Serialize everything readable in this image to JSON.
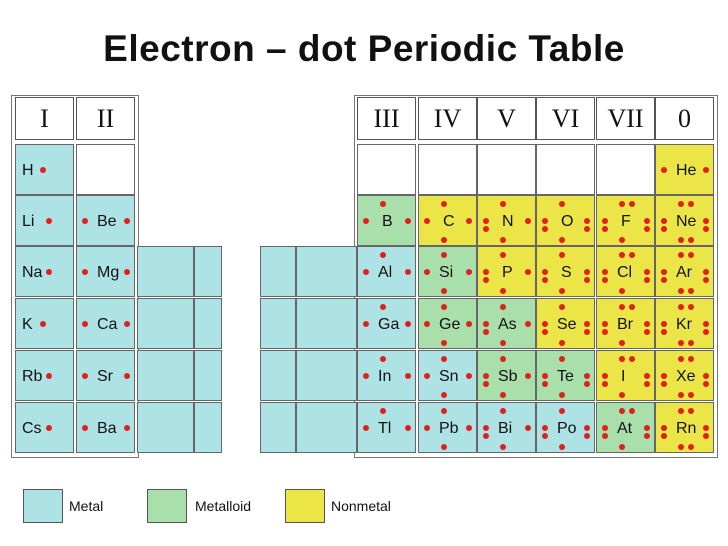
{
  "title": "Electron – dot Periodic Table",
  "colors": {
    "metal": "#aee3e6",
    "metalloid": "#a8dfaa",
    "nonmetal": "#ebe548",
    "empty": "#ffffff",
    "dot": "#e0201c"
  },
  "group_headers": [
    "I",
    "II",
    "III",
    "IV",
    "V",
    "VI",
    "VII",
    "0"
  ],
  "elements": [
    {
      "symbol": "H",
      "group": 1,
      "row": 1,
      "category": "metal",
      "valence": 1
    },
    {
      "symbol": "Li",
      "group": 1,
      "row": 2,
      "category": "metal",
      "valence": 1
    },
    {
      "symbol": "Na",
      "group": 1,
      "row": 3,
      "category": "metal",
      "valence": 1
    },
    {
      "symbol": "K",
      "group": 1,
      "row": 4,
      "category": "metal",
      "valence": 1
    },
    {
      "symbol": "Rb",
      "group": 1,
      "row": 5,
      "category": "metal",
      "valence": 1
    },
    {
      "symbol": "Cs",
      "group": 1,
      "row": 6,
      "category": "metal",
      "valence": 1
    },
    {
      "symbol": "Be",
      "group": 2,
      "row": 2,
      "category": "metal",
      "valence": 2
    },
    {
      "symbol": "Mg",
      "group": 2,
      "row": 3,
      "category": "metal",
      "valence": 2
    },
    {
      "symbol": "Ca",
      "group": 2,
      "row": 4,
      "category": "metal",
      "valence": 2
    },
    {
      "symbol": "Sr",
      "group": 2,
      "row": 5,
      "category": "metal",
      "valence": 2
    },
    {
      "symbol": "Ba",
      "group": 2,
      "row": 6,
      "category": "metal",
      "valence": 2
    },
    {
      "symbol": "B",
      "group": 3,
      "row": 2,
      "category": "metalloid",
      "valence": 3
    },
    {
      "symbol": "Al",
      "group": 3,
      "row": 3,
      "category": "metal",
      "valence": 3
    },
    {
      "symbol": "Ga",
      "group": 3,
      "row": 4,
      "category": "metal",
      "valence": 3
    },
    {
      "symbol": "In",
      "group": 3,
      "row": 5,
      "category": "metal",
      "valence": 3
    },
    {
      "symbol": "Tl",
      "group": 3,
      "row": 6,
      "category": "metal",
      "valence": 3
    },
    {
      "symbol": "C",
      "group": 4,
      "row": 2,
      "category": "nonmetal",
      "valence": 4
    },
    {
      "symbol": "Si",
      "group": 4,
      "row": 3,
      "category": "metalloid",
      "valence": 4
    },
    {
      "symbol": "Ge",
      "group": 4,
      "row": 4,
      "category": "metalloid",
      "valence": 4
    },
    {
      "symbol": "Sn",
      "group": 4,
      "row": 5,
      "category": "metal",
      "valence": 4
    },
    {
      "symbol": "Pb",
      "group": 4,
      "row": 6,
      "category": "metal",
      "valence": 4
    },
    {
      "symbol": "N",
      "group": 5,
      "row": 2,
      "category": "nonmetal",
      "valence": 5
    },
    {
      "symbol": "P",
      "group": 5,
      "row": 3,
      "category": "nonmetal",
      "valence": 5
    },
    {
      "symbol": "As",
      "group": 5,
      "row": 4,
      "category": "metalloid",
      "valence": 5
    },
    {
      "symbol": "Sb",
      "group": 5,
      "row": 5,
      "category": "metalloid",
      "valence": 5
    },
    {
      "symbol": "Bi",
      "group": 5,
      "row": 6,
      "category": "metal",
      "valence": 5
    },
    {
      "symbol": "O",
      "group": 6,
      "row": 2,
      "category": "nonmetal",
      "valence": 6
    },
    {
      "symbol": "S",
      "group": 6,
      "row": 3,
      "category": "nonmetal",
      "valence": 6
    },
    {
      "symbol": "Se",
      "group": 6,
      "row": 4,
      "category": "nonmetal",
      "valence": 6
    },
    {
      "symbol": "Te",
      "group": 6,
      "row": 5,
      "category": "metalloid",
      "valence": 6
    },
    {
      "symbol": "Po",
      "group": 6,
      "row": 6,
      "category": "metal",
      "valence": 6
    },
    {
      "symbol": "F",
      "group": 7,
      "row": 2,
      "category": "nonmetal",
      "valence": 7
    },
    {
      "symbol": "Cl",
      "group": 7,
      "row": 3,
      "category": "nonmetal",
      "valence": 7
    },
    {
      "symbol": "Br",
      "group": 7,
      "row": 4,
      "category": "nonmetal",
      "valence": 7
    },
    {
      "symbol": "I",
      "group": 7,
      "row": 5,
      "category": "nonmetal",
      "valence": 7
    },
    {
      "symbol": "At",
      "group": 7,
      "row": 6,
      "category": "metalloid",
      "valence": 7
    },
    {
      "symbol": "He",
      "group": 8,
      "row": 1,
      "category": "nonmetal",
      "valence": 2
    },
    {
      "symbol": "Ne",
      "group": 8,
      "row": 2,
      "category": "nonmetal",
      "valence": 8
    },
    {
      "symbol": "Ar",
      "group": 8,
      "row": 3,
      "category": "nonmetal",
      "valence": 8
    },
    {
      "symbol": "Kr",
      "group": 8,
      "row": 4,
      "category": "nonmetal",
      "valence": 8
    },
    {
      "symbol": "Xe",
      "group": 8,
      "row": 5,
      "category": "nonmetal",
      "valence": 8
    },
    {
      "symbol": "Rn",
      "group": 8,
      "row": 6,
      "category": "nonmetal",
      "valence": 8
    }
  ],
  "legend": [
    {
      "label": "Metal",
      "category": "metal"
    },
    {
      "label": "Metalloid",
      "category": "metalloid"
    },
    {
      "label": "Nonmetal",
      "category": "nonmetal"
    }
  ]
}
